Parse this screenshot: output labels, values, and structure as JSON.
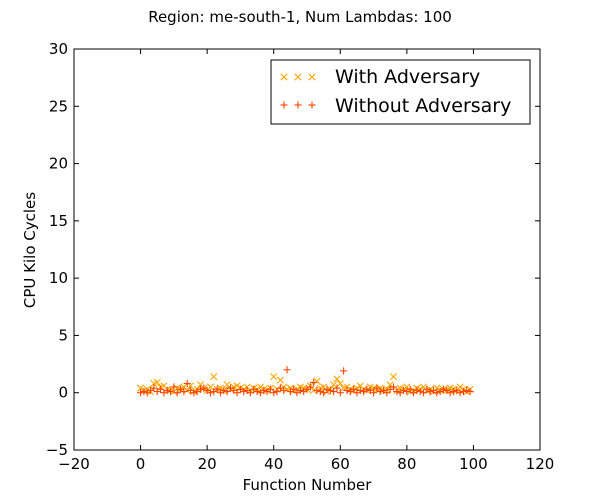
{
  "chart_data": {
    "type": "scatter",
    "title": "Region: me-south-1, Num Lambdas: 100",
    "xlabel": "Function Number",
    "ylabel": "CPU Kilo Cycles",
    "xlim": [
      -20,
      120
    ],
    "ylim": [
      -5,
      30
    ],
    "xticks": [
      -20,
      0,
      20,
      40,
      60,
      80,
      100,
      120
    ],
    "yticks": [
      -5,
      0,
      5,
      10,
      15,
      20,
      25,
      30
    ],
    "grid": false,
    "legend_position": "top-right",
    "series": [
      {
        "name": "With Adversary",
        "marker": "x",
        "color": "#FFA500",
        "x": [
          0,
          1,
          2,
          3,
          4,
          5,
          6,
          7,
          8,
          9,
          10,
          11,
          12,
          13,
          14,
          15,
          16,
          17,
          18,
          19,
          20,
          21,
          22,
          23,
          24,
          25,
          26,
          27,
          28,
          29,
          30,
          31,
          32,
          33,
          34,
          35,
          36,
          37,
          38,
          39,
          40,
          41,
          42,
          43,
          44,
          45,
          46,
          47,
          48,
          49,
          50,
          51,
          52,
          53,
          54,
          55,
          56,
          57,
          58,
          59,
          60,
          61,
          62,
          63,
          64,
          65,
          66,
          67,
          68,
          69,
          70,
          71,
          72,
          73,
          74,
          75,
          76,
          77,
          78,
          79,
          80,
          81,
          82,
          83,
          84,
          85,
          86,
          87,
          88,
          89,
          90,
          91,
          92,
          93,
          94,
          95,
          96,
          97,
          98,
          99
        ],
        "y": [
          0.4,
          0.2,
          0.3,
          0.1,
          0.8,
          0.9,
          0.5,
          0.6,
          0.3,
          0.2,
          0.1,
          0.4,
          0.3,
          0.5,
          0.2,
          0.6,
          0.1,
          0.3,
          0.7,
          0.4,
          0.2,
          0.5,
          1.4,
          0.3,
          0.4,
          0.2,
          0.7,
          0.3,
          0.5,
          0.6,
          0.4,
          0.3,
          0.5,
          0.2,
          0.4,
          0.3,
          0.5,
          0.3,
          0.2,
          0.4,
          1.4,
          0.3,
          1.1,
          0.5,
          0.3,
          0.4,
          0.2,
          0.3,
          0.5,
          0.4,
          0.3,
          0.6,
          0.2,
          1.0,
          0.4,
          0.5,
          0.1,
          0.3,
          0.7,
          1.2,
          0.8,
          0.4,
          0.5,
          0.3,
          0.2,
          0.4,
          0.6,
          0.3,
          0.2,
          0.5,
          0.4,
          0.3,
          0.4,
          0.2,
          0.3,
          0.7,
          1.4,
          0.2,
          0.4,
          0.3,
          0.5,
          0.1,
          0.2,
          0.4,
          0.3,
          0.5,
          0.2,
          0.3,
          0.1,
          0.4,
          0.2,
          0.3,
          0.2,
          0.4,
          0.3,
          0.2,
          0.5,
          0.3,
          0.1,
          0.3
        ]
      },
      {
        "name": "Without Adversary",
        "marker": "+",
        "color": "#FF4500",
        "x": [
          0,
          1,
          2,
          3,
          4,
          5,
          6,
          7,
          8,
          9,
          10,
          11,
          12,
          13,
          14,
          15,
          16,
          17,
          18,
          19,
          20,
          21,
          22,
          23,
          24,
          25,
          26,
          27,
          28,
          29,
          30,
          31,
          32,
          33,
          34,
          35,
          36,
          37,
          38,
          39,
          40,
          41,
          42,
          43,
          44,
          45,
          46,
          47,
          48,
          49,
          50,
          51,
          52,
          53,
          54,
          55,
          56,
          57,
          58,
          59,
          60,
          61,
          62,
          63,
          64,
          65,
          66,
          67,
          68,
          69,
          70,
          71,
          72,
          73,
          74,
          75,
          76,
          77,
          78,
          79,
          80,
          81,
          82,
          83,
          84,
          85,
          86,
          87,
          88,
          89,
          90,
          91,
          92,
          93,
          94,
          95,
          96,
          97,
          98,
          99
        ],
        "y": [
          0.0,
          0.1,
          0.0,
          0.2,
          0.4,
          0.1,
          0.3,
          0.0,
          0.2,
          0.1,
          0.5,
          0.0,
          0.3,
          0.1,
          0.8,
          0.2,
          0.0,
          0.1,
          0.3,
          0.4,
          0.2,
          0.0,
          0.1,
          0.3,
          0.0,
          0.2,
          0.1,
          0.4,
          0.2,
          0.0,
          0.3,
          0.1,
          0.2,
          0.0,
          0.3,
          0.1,
          0.0,
          0.2,
          0.1,
          0.3,
          0.0,
          0.1,
          0.4,
          0.2,
          2.0,
          0.1,
          0.3,
          0.0,
          0.2,
          0.1,
          0.3,
          0.5,
          0.9,
          0.2,
          0.1,
          0.0,
          0.3,
          0.2,
          0.1,
          0.4,
          0.0,
          1.9,
          0.2,
          0.1,
          0.3,
          0.0,
          0.2,
          0.1,
          0.3,
          0.2,
          0.0,
          0.4,
          0.1,
          0.2,
          0.0,
          0.3,
          0.5,
          0.1,
          0.0,
          0.2,
          0.1,
          0.3,
          0.0,
          0.2,
          0.1,
          0.0,
          0.3,
          0.1,
          0.2,
          0.0,
          0.1,
          0.3,
          0.2,
          0.0,
          0.1,
          0.2,
          0.0,
          0.1,
          0.2,
          0.1
        ]
      }
    ]
  }
}
